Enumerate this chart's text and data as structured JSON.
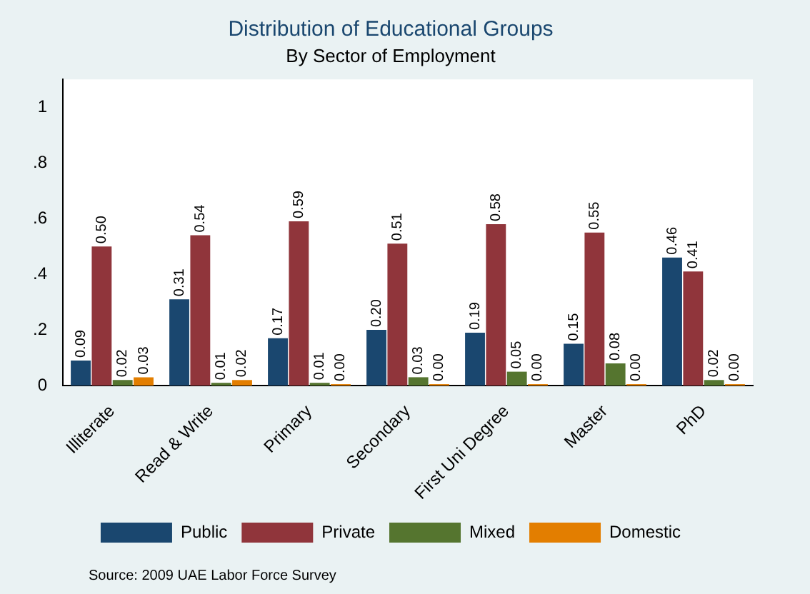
{
  "chart_data": {
    "type": "bar",
    "title": "Distribution of Educational Groups",
    "subtitle": "By Sector of Employment",
    "categories": [
      "Illiterate",
      "Read & Write",
      "Primary",
      "Secondary",
      "First Uni Degree",
      "Master",
      "PhD"
    ],
    "series": [
      {
        "name": "Public",
        "color": "#1a476f",
        "values": [
          0.09,
          0.31,
          0.17,
          0.2,
          0.19,
          0.15,
          0.46
        ],
        "value_labels": [
          "0.09",
          "0.31",
          "0.17",
          "0.20",
          "0.19",
          "0.15",
          "0.46"
        ]
      },
      {
        "name": "Private",
        "color": "#90353b",
        "values": [
          0.5,
          0.54,
          0.59,
          0.51,
          0.58,
          0.55,
          0.41
        ],
        "value_labels": [
          "0.50",
          "0.54",
          "0.59",
          "0.51",
          "0.58",
          "0.55",
          "0.41"
        ]
      },
      {
        "name": "Mixed",
        "color": "#55752f",
        "values": [
          0.02,
          0.01,
          0.01,
          0.03,
          0.05,
          0.08,
          0.02
        ],
        "value_labels": [
          "0.02",
          "0.01",
          "0.01",
          "0.03",
          "0.05",
          "0.08",
          "0.02"
        ]
      },
      {
        "name": "Domestic",
        "color": "#e37e00",
        "values": [
          0.03,
          0.02,
          0.0,
          0.0,
          0.0,
          0.0,
          0.0
        ],
        "value_labels": [
          "0.03",
          "0.02",
          "0.00",
          "0.00",
          "0.00",
          "0.00",
          "0.00"
        ]
      }
    ],
    "ylim": [
      0,
      1.1
    ],
    "yticks": [
      0,
      {
        "value": 0.2,
        "label": ".2"
      },
      {
        "value": 0.4,
        "label": ".4"
      },
      {
        "value": 0.6,
        "label": ".6"
      },
      {
        "value": 0.8,
        "label": ".8"
      },
      1
    ],
    "grid": false,
    "legend": "bottom",
    "annotations": [
      "Source: 2009 UAE Labor Force Survey"
    ]
  }
}
